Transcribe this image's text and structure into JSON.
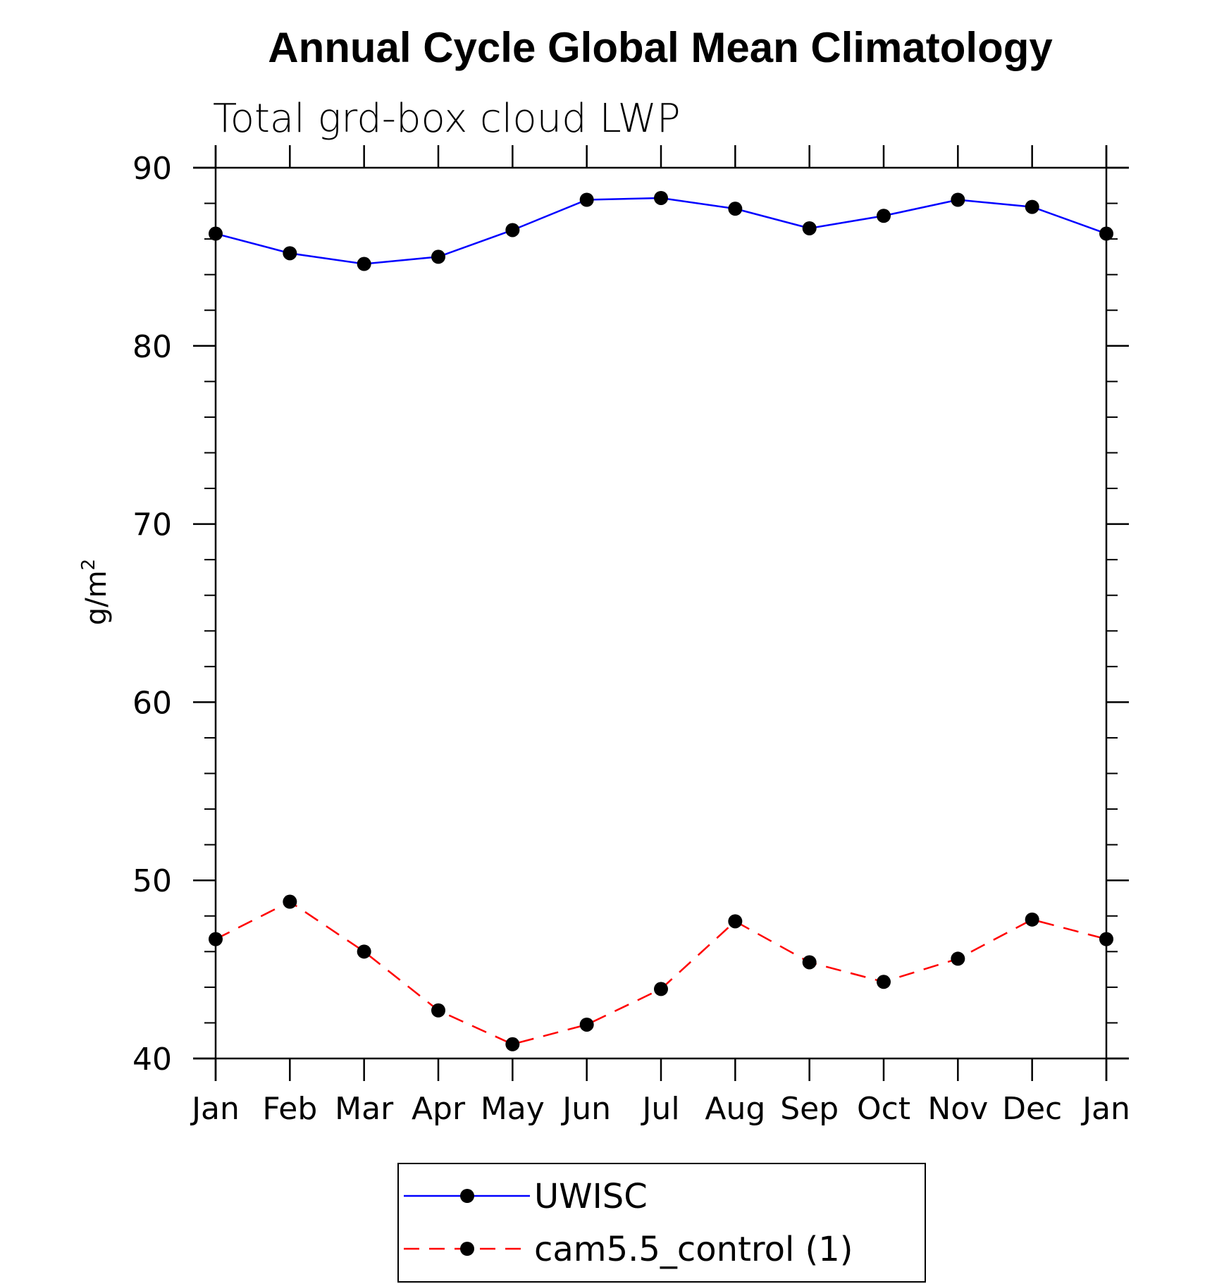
{
  "chart_data": {
    "type": "line",
    "title": "Annual Cycle Global Mean Climatology",
    "subtitle": "Total grd-box cloud LWP",
    "ylabel": "g/m",
    "ylabel_superscript": "2",
    "categories": [
      "Jan",
      "Feb",
      "Mar",
      "Apr",
      "May",
      "Jun",
      "Jul",
      "Aug",
      "Sep",
      "Oct",
      "Nov",
      "Dec",
      "Jan"
    ],
    "ylim": [
      40,
      90
    ],
    "y_ticks": [
      40,
      50,
      60,
      70,
      80,
      90
    ],
    "y_tick_labels": [
      "40",
      "50",
      "60",
      "70",
      "80",
      "90"
    ],
    "grid": false,
    "legend_position": "bottom",
    "series": [
      {
        "name": "UWISC",
        "color": "#0000ff",
        "line_style": "solid",
        "marker": "filled-circle",
        "values": [
          86.3,
          85.2,
          84.6,
          85.0,
          86.5,
          88.2,
          88.3,
          87.7,
          86.6,
          87.3,
          88.2,
          87.8,
          86.3
        ]
      },
      {
        "name": "cam5.5_control (1)",
        "color": "#ff0000",
        "line_style": "dashed",
        "marker": "filled-circle",
        "values": [
          46.7,
          48.8,
          46.0,
          42.7,
          40.8,
          41.9,
          43.9,
          47.7,
          45.4,
          44.3,
          45.6,
          47.8,
          46.7
        ]
      }
    ]
  }
}
